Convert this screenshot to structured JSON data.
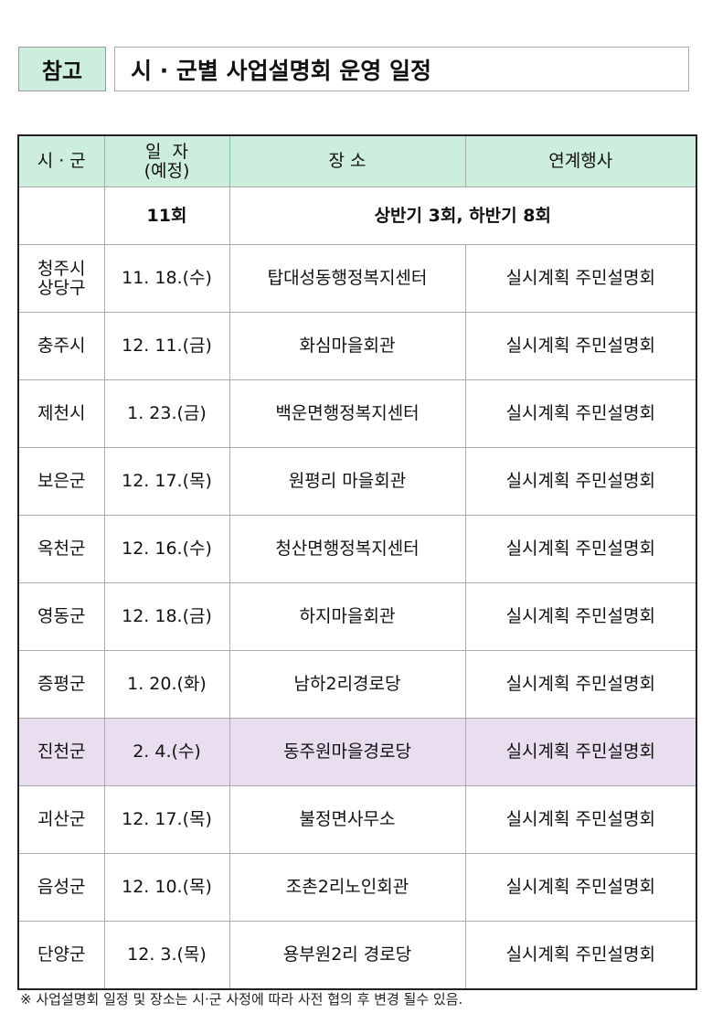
{
  "header": {
    "tag": "참고",
    "title": "시 · 군별 사업설명회 운영 일정"
  },
  "table": {
    "columns": [
      "시 · 군",
      "일  자\n(예정)",
      "장  소",
      "연계행사"
    ],
    "col_date_line1": "일  자",
    "col_date_line2": "(예정)",
    "summary": {
      "count": "11회",
      "detail": "상반기 3회, 하반기 8회"
    },
    "rows": [
      {
        "city": "청주시 상당구",
        "date": "11. 18.(수)",
        "place": "탑대성동행정복지센터",
        "event": "실시계획 주민설명회"
      },
      {
        "city": "충주시",
        "date": "12. 11.(금)",
        "place": "화심마을회관",
        "event": "실시계획 주민설명회"
      },
      {
        "city": "제천시",
        "date": "1. 23.(금)",
        "place": "백운면행정복지센터",
        "event": "실시계획 주민설명회"
      },
      {
        "city": "보은군",
        "date": "12. 17.(목)",
        "place": "원평리 마을회관",
        "event": "실시계획 주민설명회"
      },
      {
        "city": "옥천군",
        "date": "12. 16.(수)",
        "place": "청산면행정복지센터",
        "event": "실시계획 주민설명회"
      },
      {
        "city": "영동군",
        "date": "12. 18.(금)",
        "place": "하지마을회관",
        "event": "실시계획 주민설명회"
      },
      {
        "city": "증평군",
        "date": "1. 20.(화)",
        "place": "남하2리경로당",
        "event": "실시계획 주민설명회"
      },
      {
        "city": "진천군",
        "date": "2. 4.(수)",
        "place": "동주원마을경로당",
        "event": "실시계획 주민설명회"
      },
      {
        "city": "괴산군",
        "date": "12. 17.(목)",
        "place": "불정면사무소",
        "event": "실시계획 주민설명회"
      },
      {
        "city": "음성군",
        "date": "12. 10.(목)",
        "place": "조촌2리노인회관",
        "event": "실시계획 주민설명회"
      },
      {
        "city": "단양군",
        "date": "12. 3.(목)",
        "place": "용부원2리 경로당",
        "event": "실시계획 주민설명회"
      }
    ],
    "highlight_row": "진천군",
    "colors": {
      "header_bg": "#cdeedd",
      "highlight_bg": "#e8def0"
    }
  },
  "footnote": "※ 사업설명회 일정 및 장소는 시·군 사정에 따라 사전 협의 후 변경 될수 있음."
}
